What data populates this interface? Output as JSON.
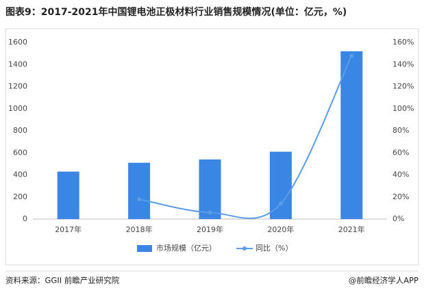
{
  "chart_data": {
    "type": "bar-line",
    "title": "图表9：2017-2021年中国锂电池正极材料行业销售规模情况(单位：亿元，%)",
    "categories": [
      "2017年",
      "2018年",
      "2019年",
      "2020年",
      "2021年"
    ],
    "series": [
      {
        "name": "市场规模（亿元）",
        "color": "#3a86e4",
        "type": "bar",
        "values": [
          430,
          510,
          540,
          610,
          1520
        ]
      },
      {
        "name": "同比（%）",
        "color": "#5a9ce8",
        "type": "line",
        "axis": "y2",
        "values": [
          null,
          18,
          6,
          14,
          148
        ]
      }
    ],
    "ylim": [
      0,
      1600
    ],
    "yticks": [
      0,
      200,
      400,
      600,
      800,
      1000,
      1200,
      1400,
      1600
    ],
    "y2lim": [
      0,
      160
    ],
    "y2ticks": [
      {
        "value": 0,
        "label": "0%"
      },
      {
        "value": 20,
        "label": "20%"
      },
      {
        "value": 40,
        "label": "40%"
      },
      {
        "value": 60,
        "label": "60%"
      },
      {
        "value": 80,
        "label": "80%"
      },
      {
        "value": 100,
        "label": "100%"
      },
      {
        "value": 120,
        "label": "120%"
      },
      {
        "value": 140,
        "label": "140%"
      },
      {
        "value": 160,
        "label": "160%"
      }
    ],
    "source": "资料来源：GGII 前瞻产业研究院",
    "credit": "@前瞻经济学人APP"
  }
}
